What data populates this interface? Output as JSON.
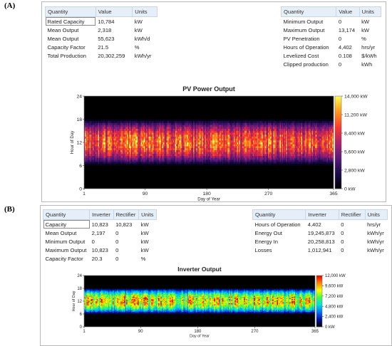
{
  "panels": {
    "a": {
      "label": "(A)"
    },
    "b": {
      "label": "(B)"
    }
  },
  "pv": {
    "table_left": {
      "headers": [
        "Quantity",
        "Value",
        "Units"
      ],
      "rows": [
        [
          "Rated Capacity",
          "10,784",
          "kW"
        ],
        [
          "Mean Output",
          "2,318",
          "kW"
        ],
        [
          "Mean Output",
          "55,623",
          "kWh/d"
        ],
        [
          "Capacity Factor",
          "21.5",
          "%"
        ],
        [
          "Total Production",
          "20,302,259",
          "kWh/yr"
        ]
      ]
    },
    "table_right": {
      "headers": [
        "Quantity",
        "Value",
        "Units"
      ],
      "rows": [
        [
          "Minimum Output",
          "0",
          "kW"
        ],
        [
          "Maximum Output",
          "13,174",
          "kW"
        ],
        [
          "PV Penetration",
          "0",
          "%"
        ],
        [
          "Hours of Operation",
          "4,402",
          "hrs/yr"
        ],
        [
          "Levelized Cost",
          "0.108",
          "$/kWh"
        ],
        [
          "Clipped production",
          "0",
          "kWh"
        ]
      ]
    }
  },
  "inverter": {
    "table_left": {
      "headers": [
        "Quantity",
        "Inverter",
        "Rectifier",
        "Units"
      ],
      "rows": [
        [
          "Capacity",
          "10,823",
          "10,823",
          "kW"
        ],
        [
          "Mean Output",
          "2,197",
          "0",
          "kW"
        ],
        [
          "Minimum Output",
          "0",
          "0",
          "kW"
        ],
        [
          "Maximum Output",
          "10,823",
          "0",
          "kW"
        ],
        [
          "Capacity Factor",
          "20.3",
          "0",
          "%"
        ]
      ]
    },
    "table_right": {
      "headers": [
        "Quantity",
        "Inverter",
        "Rectifier",
        "Units"
      ],
      "rows": [
        [
          "Hours of Operation",
          "4,402",
          "0",
          "hrs/yr"
        ],
        [
          "Energy Out",
          "19,245,873",
          "0",
          "kWh/yr"
        ],
        [
          "Energy In",
          "20,258,813",
          "0",
          "kWh/yr"
        ],
        [
          "Losses",
          "1,012,941",
          "0",
          "kWh/yr"
        ]
      ]
    }
  },
  "chart_data": [
    {
      "type": "heatmap",
      "title": "PV Power Output",
      "xlabel": "Day of Year",
      "ylabel": "Hour of Day",
      "xlim": [
        1,
        365
      ],
      "ylim": [
        0,
        24
      ],
      "x_ticks": [
        "1",
        "90",
        "180",
        "270",
        "365"
      ],
      "y_ticks": [
        "0",
        "6",
        "12",
        "18",
        "24"
      ],
      "colorbar_ticks": [
        "0 kW",
        "2,800 kW",
        "5,600 kW",
        "8,400 kW",
        "11,200 kW",
        "14,000 kW"
      ],
      "colorbar_range": [
        0,
        14000
      ],
      "colormap": [
        "#000000",
        "#1a0a4a",
        "#5a1a7a",
        "#b0206a",
        "#ff3a2a",
        "#ff9a1a",
        "#ffff50"
      ],
      "active_hours": [
        6,
        18
      ],
      "peak_hour": 12
    },
    {
      "type": "heatmap",
      "title": "Inverter Output",
      "xlabel": "Day of Year",
      "ylabel": "Hour of Day",
      "xlim": [
        1,
        365
      ],
      "ylim": [
        0,
        24
      ],
      "x_ticks": [
        "1",
        "90",
        "180",
        "270",
        "365"
      ],
      "y_ticks": [
        "0",
        "6",
        "12",
        "18",
        "24"
      ],
      "colorbar_ticks": [
        "0 kW",
        "2,400 kW",
        "4,800 kW",
        "7,200 kW",
        "9,600 kW",
        "12,000 kW"
      ],
      "colorbar_range": [
        0,
        12000
      ],
      "colormap": [
        "#000000",
        "#0010a0",
        "#0070ff",
        "#00e0e0",
        "#40ff40",
        "#ffff00",
        "#ff8000",
        "#e00000"
      ],
      "active_hours": [
        6,
        18
      ],
      "peak_hour": 12
    }
  ]
}
